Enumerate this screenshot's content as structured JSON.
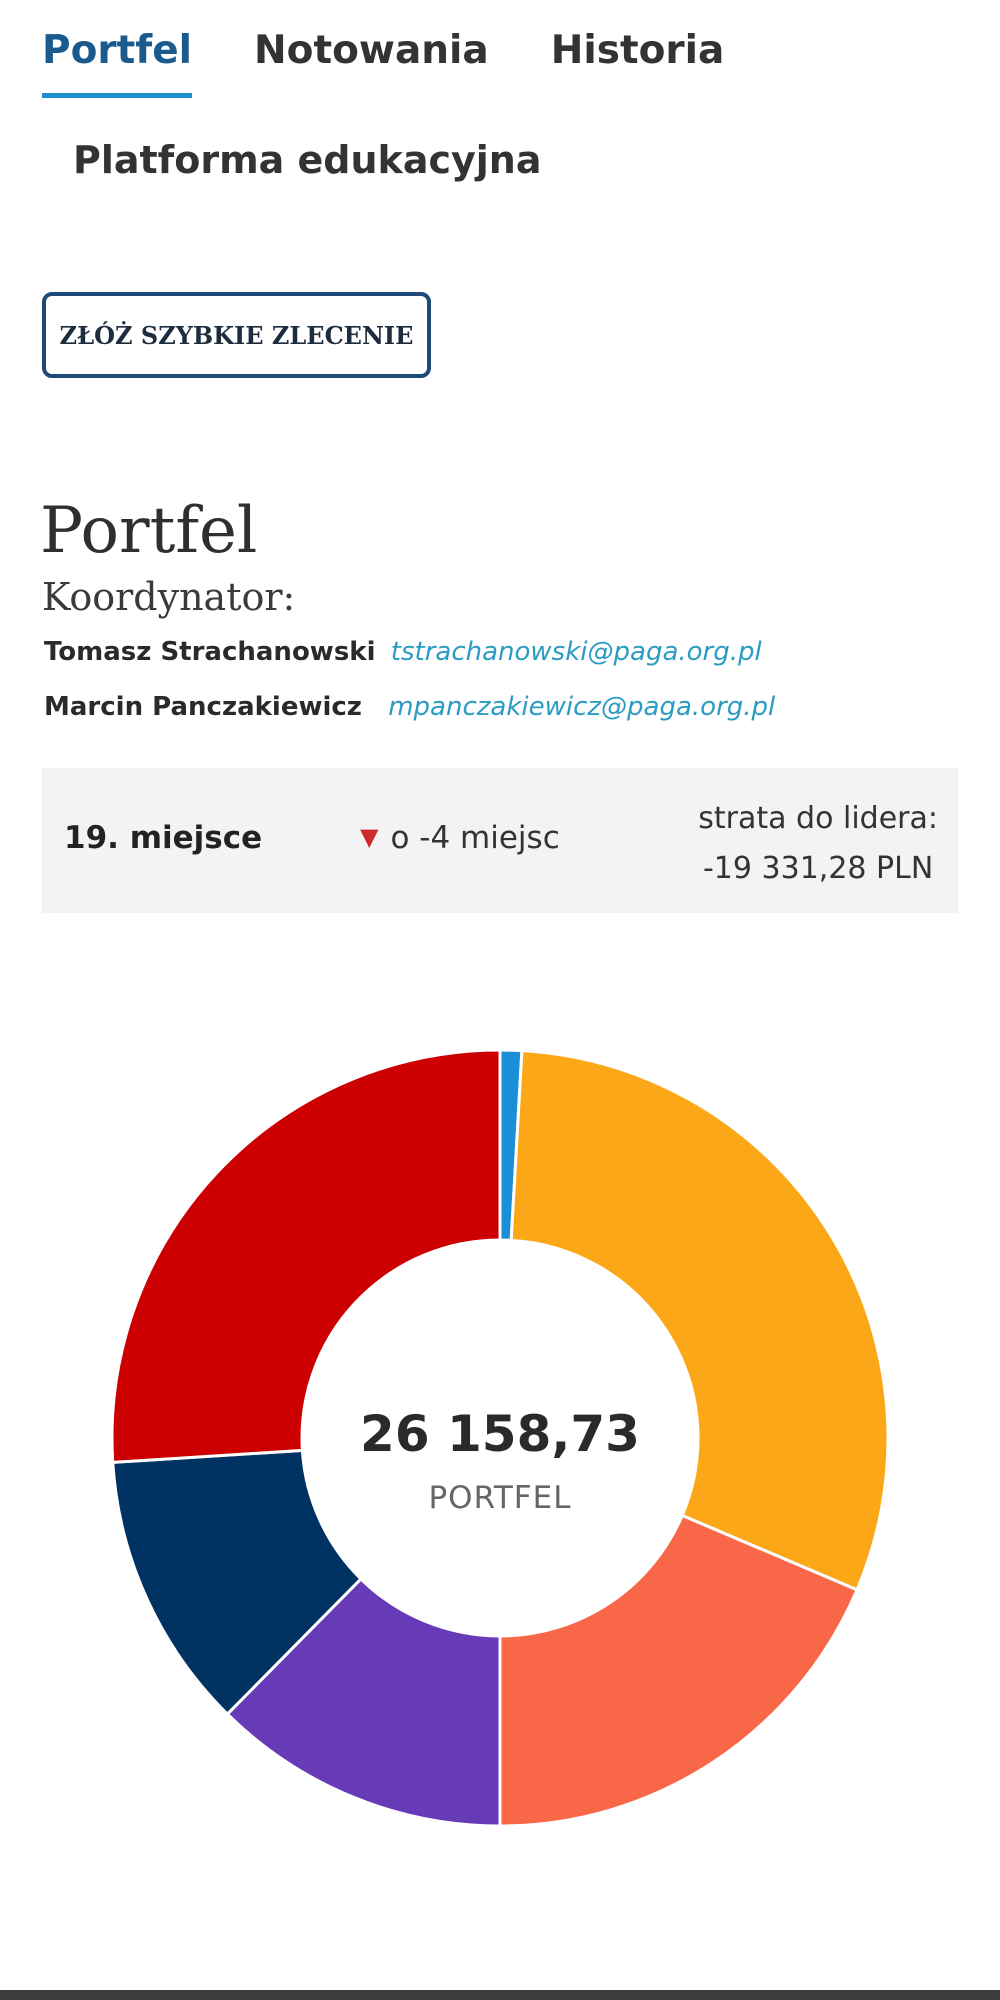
{
  "tabs": [
    {
      "label": "Portfel",
      "active": true
    },
    {
      "label": "Notowania",
      "active": false
    },
    {
      "label": "Historia",
      "active": false
    }
  ],
  "subtitle": "Platforma edukacyjna",
  "quick_order_label": "ZŁÓŻ SZYBKIE ZLECENIE",
  "page_title": "Portfel",
  "coordinator_label": "Koordynator:",
  "coordinators": [
    {
      "name": "Tomasz Strachanowski",
      "email": "tstrachanowski@paga.org.pl"
    },
    {
      "name": "Marcin Panczakiewicz",
      "email": "mpanczakiewicz@paga.org.pl"
    }
  ],
  "ranking": {
    "place": "19. miejsce",
    "change": "o -4 miejsc",
    "change_direction": "down",
    "loss_label": "strata do lidera:",
    "loss_value": "-19 331,28 PLN"
  },
  "portfolio_chart": {
    "center_value": "26 158,73",
    "center_label": "PORTFEL",
    "slices": [
      {
        "share": 0.009,
        "color": "#1a8fd6"
      },
      {
        "share": 0.305,
        "color": "#fba718"
      },
      {
        "share": 0.186,
        "color": "#f76748"
      },
      {
        "share": 0.124,
        "color": "#673ab7"
      },
      {
        "share": 0.116,
        "color": "#003262"
      },
      {
        "share": 0.26,
        "color": "#cc0000"
      }
    ]
  },
  "colors": {
    "accent": "#1a5a8c",
    "tab_underline": "#1f8fd0",
    "link": "#2a9bc2",
    "down_arrow": "#cf2a2a"
  }
}
